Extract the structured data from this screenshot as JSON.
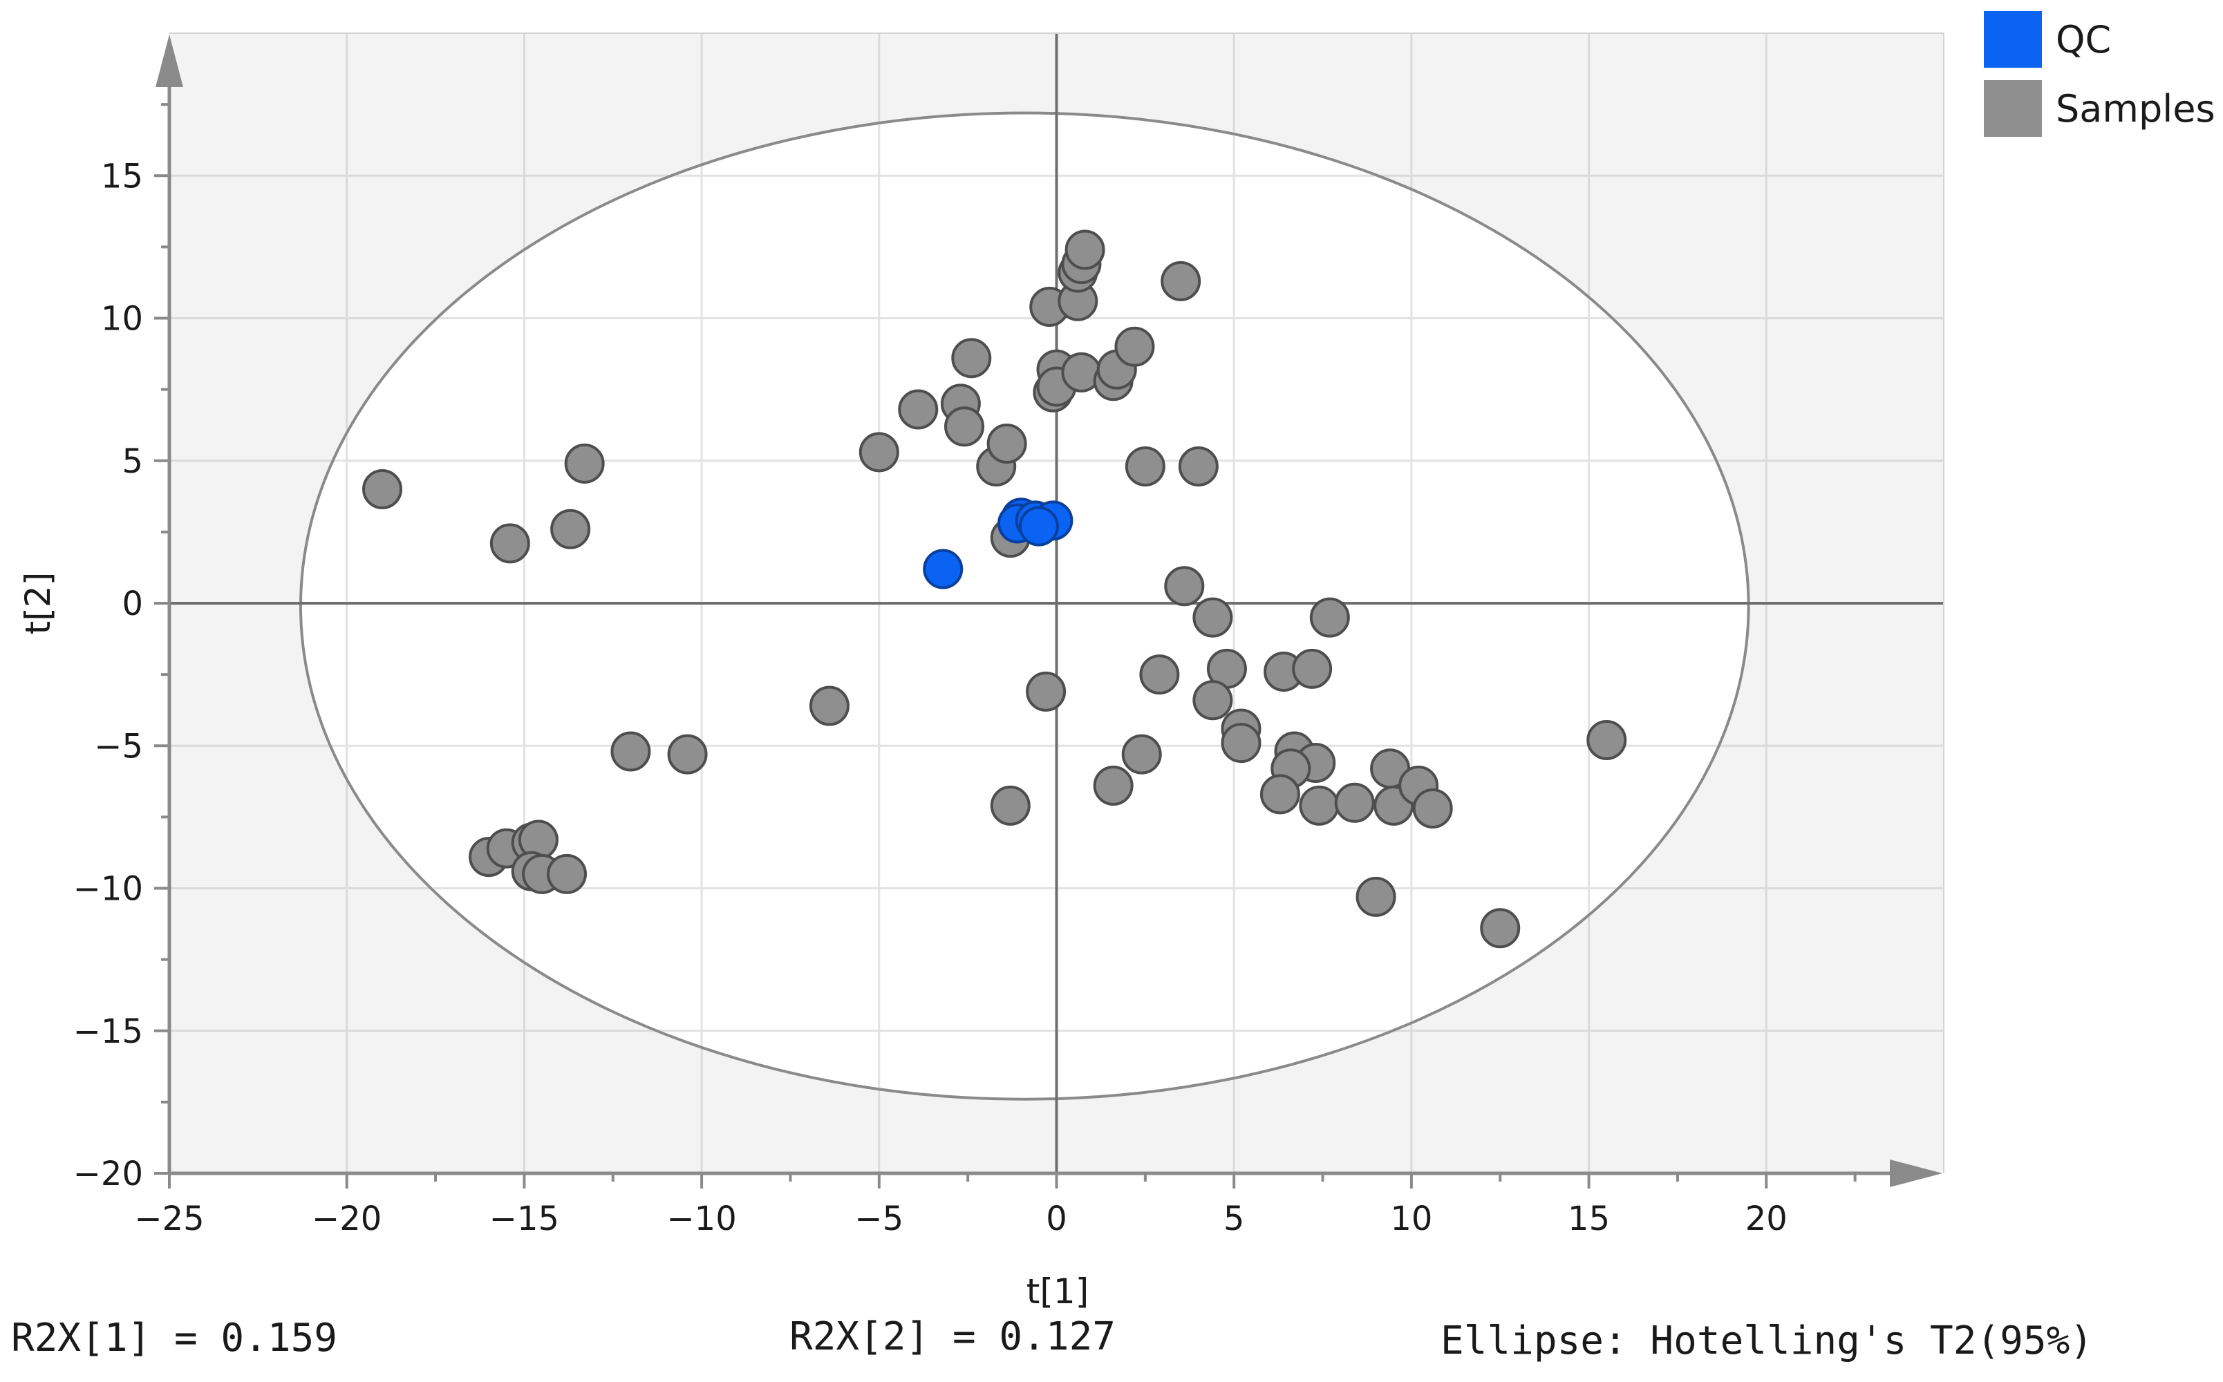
{
  "chart_data": {
    "type": "scatter",
    "title": "",
    "xlabel": "t[1]",
    "ylabel": "t[2]",
    "xlim": [
      -25,
      25
    ],
    "ylim": [
      -20,
      20
    ],
    "x_ticks": [
      -25,
      -20,
      -15,
      -10,
      -5,
      0,
      5,
      10,
      15,
      20
    ],
    "y_ticks": [
      -20,
      -15,
      -10,
      -5,
      0,
      5,
      10,
      15
    ],
    "x_tick_labels": [
      "−25",
      "−20",
      "−15",
      "−10",
      "−5",
      "0",
      "5",
      "10",
      "15",
      "20"
    ],
    "y_tick_labels": [
      "−20",
      "−15",
      "−10",
      "−5",
      "0",
      "5",
      "10",
      "15"
    ],
    "grid": true,
    "legend_position": "top-right",
    "ellipse": {
      "label": "Ellipse: Hotelling's T2(95%)",
      "center": [
        -0.9,
        -0.1
      ],
      "semi_axis_x": 20.4,
      "semi_axis_y": 17.3
    },
    "series": [
      {
        "name": "QC",
        "color": "#0a63f2",
        "points": [
          [
            -3.2,
            1.2
          ],
          [
            -1.0,
            3.0
          ],
          [
            -1.1,
            2.8
          ],
          [
            -0.6,
            2.9
          ],
          [
            -0.1,
            2.9
          ],
          [
            -0.5,
            2.7
          ]
        ]
      },
      {
        "name": "Samples",
        "color": "#8f8f8f",
        "points": [
          [
            -19.0,
            4.0
          ],
          [
            -15.4,
            2.1
          ],
          [
            -13.7,
            2.6
          ],
          [
            -13.3,
            4.9
          ],
          [
            -12.0,
            -5.2
          ],
          [
            -10.4,
            -5.3
          ],
          [
            -6.4,
            -3.6
          ],
          [
            -5.0,
            5.3
          ],
          [
            -3.9,
            6.8
          ],
          [
            -2.7,
            7.0
          ],
          [
            -2.6,
            6.2
          ],
          [
            -2.4,
            8.6
          ],
          [
            -1.7,
            4.8
          ],
          [
            -1.4,
            5.6
          ],
          [
            -1.3,
            2.3
          ],
          [
            -1.3,
            -7.1
          ],
          [
            -0.3,
            -3.1
          ],
          [
            -0.2,
            10.4
          ],
          [
            0.0,
            8.2
          ],
          [
            -0.1,
            7.4
          ],
          [
            0.0,
            7.6
          ],
          [
            0.7,
            8.1
          ],
          [
            0.6,
            10.6
          ],
          [
            0.6,
            11.6
          ],
          [
            0.7,
            11.9
          ],
          [
            0.8,
            12.4
          ],
          [
            1.6,
            7.8
          ],
          [
            1.7,
            8.2
          ],
          [
            2.2,
            9.0
          ],
          [
            2.5,
            4.8
          ],
          [
            3.5,
            11.3
          ],
          [
            4.0,
            4.8
          ],
          [
            3.6,
            0.6
          ],
          [
            4.4,
            -0.5
          ],
          [
            4.8,
            -2.3
          ],
          [
            4.4,
            -3.4
          ],
          [
            2.9,
            -2.5
          ],
          [
            2.4,
            -5.3
          ],
          [
            1.6,
            -6.4
          ],
          [
            5.2,
            -4.4
          ],
          [
            5.2,
            -4.9
          ],
          [
            6.4,
            -2.4
          ],
          [
            7.2,
            -2.3
          ],
          [
            7.7,
            -0.5
          ],
          [
            6.7,
            -5.2
          ],
          [
            7.3,
            -5.6
          ],
          [
            6.6,
            -5.8
          ],
          [
            6.3,
            -6.7
          ],
          [
            7.4,
            -7.1
          ],
          [
            8.4,
            -7.0
          ],
          [
            9.4,
            -5.8
          ],
          [
            9.5,
            -7.1
          ],
          [
            10.2,
            -6.4
          ],
          [
            10.6,
            -7.2
          ],
          [
            9.0,
            -10.3
          ],
          [
            12.5,
            -11.4
          ],
          [
            15.5,
            -4.8
          ],
          [
            -16.0,
            -8.9
          ],
          [
            -15.5,
            -8.6
          ],
          [
            -14.8,
            -8.4
          ],
          [
            -14.6,
            -8.3
          ],
          [
            -14.8,
            -9.4
          ],
          [
            -14.5,
            -9.5
          ],
          [
            -13.8,
            -9.5
          ]
        ]
      }
    ],
    "annotations": [
      "R2X[1] = 0.159",
      "R2X[2] = 0.127",
      "Ellipse: Hotelling's T2(95%)"
    ]
  },
  "footer": {
    "r2x1": "R2X[1] = 0.159",
    "r2x2": "R2X[2] = 0.127",
    "ellipse_note": "Ellipse: Hotelling's T2(95%)"
  }
}
